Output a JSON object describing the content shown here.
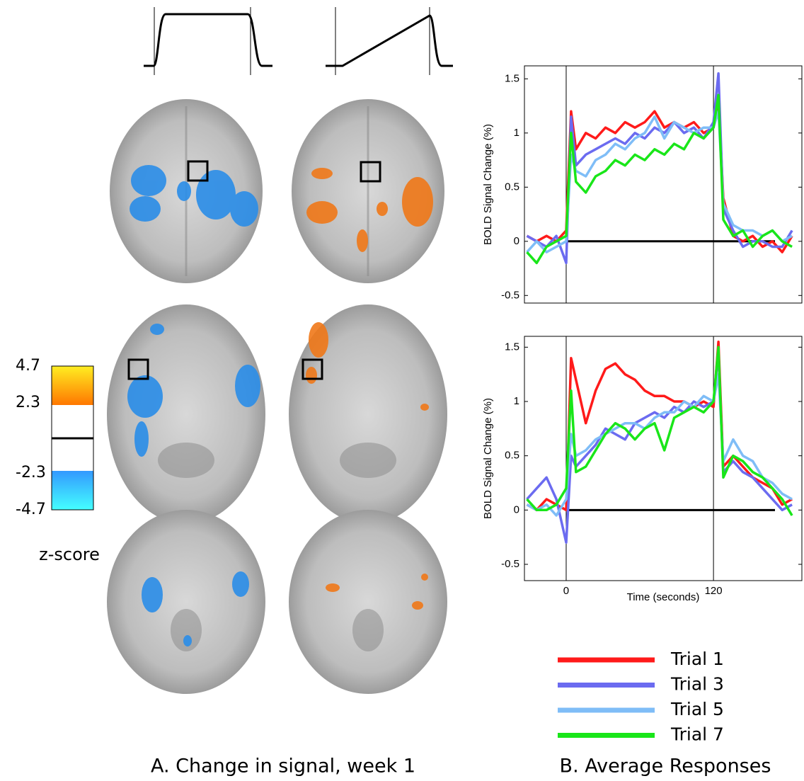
{
  "panel_a": {
    "caption": "A. Change in signal, week 1",
    "colorbar": {
      "label": "z-score",
      "lim": [
        -4.7,
        4.7
      ],
      "ticks": [
        4.7,
        2.3,
        -2.3,
        -4.7
      ]
    }
  },
  "panel_b": {
    "caption": "B. Average Responses"
  },
  "chart_data": [
    {
      "type": "line",
      "ylabel": "BOLD Signal Change (%)",
      "x": [
        -32,
        -24,
        -16,
        -8,
        0,
        4,
        8,
        16,
        24,
        32,
        40,
        48,
        56,
        64,
        72,
        80,
        88,
        96,
        104,
        112,
        120,
        124,
        128,
        136,
        144,
        152,
        160,
        168,
        176,
        184
      ],
      "xlim": [
        -34,
        192
      ],
      "ylim": [
        -0.57,
        1.62
      ],
      "yticks": [
        1.5,
        1,
        0.5,
        0,
        -0.5
      ],
      "vlines": [
        0,
        120
      ],
      "series": [
        {
          "color": "#ff1a1a",
          "values": [
            0.05,
            0,
            0.05,
            0,
            0.1,
            1.2,
            0.85,
            1,
            0.95,
            1.05,
            1,
            1.1,
            1.05,
            1.1,
            1.2,
            1.05,
            1.1,
            1.05,
            1.1,
            1,
            1.05,
            1.3,
            0.4,
            0.05,
            0,
            0.05,
            -0.05,
            0,
            -0.1,
            0.05
          ]
        },
        {
          "color": "#6b6bf0",
          "values": [
            0.05,
            0,
            -0.05,
            0.05,
            -0.2,
            1.15,
            0.7,
            0.8,
            0.85,
            0.9,
            0.95,
            0.9,
            1,
            0.95,
            1.05,
            1,
            1.1,
            1,
            1.05,
            0.95,
            1.1,
            1.55,
            0.3,
            0.1,
            -0.05,
            0,
            0,
            -0.05,
            -0.05,
            0.1
          ]
        },
        {
          "color": "#7fbdf7",
          "values": [
            -0.1,
            0,
            -0.1,
            -0.05,
            0,
            0.8,
            0.65,
            0.6,
            0.75,
            0.8,
            0.9,
            0.85,
            0.95,
            1,
            1.15,
            0.95,
            1.1,
            1.05,
            1,
            1.05,
            1.05,
            1.2,
            0.35,
            0.15,
            0.1,
            0.1,
            0.05,
            0.1,
            0,
            0.05
          ]
        },
        {
          "color": "#19e619",
          "values": [
            -0.1,
            -0.2,
            -0.05,
            0,
            0.05,
            1,
            0.55,
            0.45,
            0.6,
            0.65,
            0.75,
            0.7,
            0.8,
            0.75,
            0.85,
            0.8,
            0.9,
            0.85,
            1,
            0.95,
            1.05,
            1.35,
            0.2,
            0.05,
            0.1,
            -0.05,
            0.05,
            0.1,
            0,
            -0.05
          ]
        }
      ]
    },
    {
      "type": "line",
      "ylabel": "BOLD Signal Change (%)",
      "xlabel": "Time (seconds)",
      "x": [
        -32,
        -24,
        -16,
        -8,
        0,
        4,
        8,
        16,
        24,
        32,
        40,
        48,
        56,
        64,
        72,
        80,
        88,
        96,
        104,
        112,
        120,
        124,
        128,
        136,
        144,
        152,
        160,
        168,
        176,
        184
      ],
      "xlim": [
        -34,
        192
      ],
      "ylim": [
        -0.65,
        1.6
      ],
      "yticks": [
        1.5,
        1,
        0.5,
        0,
        -0.5
      ],
      "xticks": [
        0,
        120
      ],
      "vlines": [
        0,
        120
      ],
      "series": [
        {
          "name": "Trial 1",
          "color": "#ff1a1a",
          "values": [
            0.05,
            0,
            0.1,
            0.05,
            0,
            1.4,
            1.2,
            0.8,
            1.1,
            1.3,
            1.35,
            1.25,
            1.2,
            1.1,
            1.05,
            1.05,
            1,
            1,
            0.95,
            1,
            0.95,
            1.55,
            0.4,
            0.5,
            0.4,
            0.3,
            0.25,
            0.2,
            0.05,
            0.1
          ]
        },
        {
          "name": "Trial 3",
          "color": "#6b6bf0",
          "values": [
            0.1,
            0.2,
            0.3,
            0.1,
            -0.3,
            0.5,
            0.4,
            0.5,
            0.6,
            0.75,
            0.7,
            0.65,
            0.8,
            0.85,
            0.9,
            0.85,
            0.95,
            0.9,
            1,
            0.95,
            1,
            1.45,
            0.35,
            0.45,
            0.35,
            0.3,
            0.2,
            0.1,
            0,
            0.05
          ]
        },
        {
          "name": "Trial 5",
          "color": "#7fbdf7",
          "values": [
            0.05,
            0,
            0.05,
            -0.05,
            0.1,
            0.7,
            0.5,
            0.55,
            0.65,
            0.7,
            0.75,
            0.8,
            0.8,
            0.75,
            0.85,
            0.9,
            0.9,
            1,
            0.95,
            1.05,
            1,
            1.25,
            0.45,
            0.65,
            0.5,
            0.45,
            0.3,
            0.25,
            0.15,
            0.1
          ]
        },
        {
          "name": "Trial 7",
          "color": "#19e619",
          "values": [
            0.1,
            0,
            0,
            0.05,
            0.2,
            1.1,
            0.35,
            0.4,
            0.55,
            0.7,
            0.8,
            0.75,
            0.65,
            0.75,
            0.8,
            0.55,
            0.85,
            0.9,
            0.95,
            0.9,
            1,
            1.5,
            0.3,
            0.5,
            0.45,
            0.35,
            0.3,
            0.2,
            0.1,
            -0.05
          ]
        }
      ]
    }
  ]
}
